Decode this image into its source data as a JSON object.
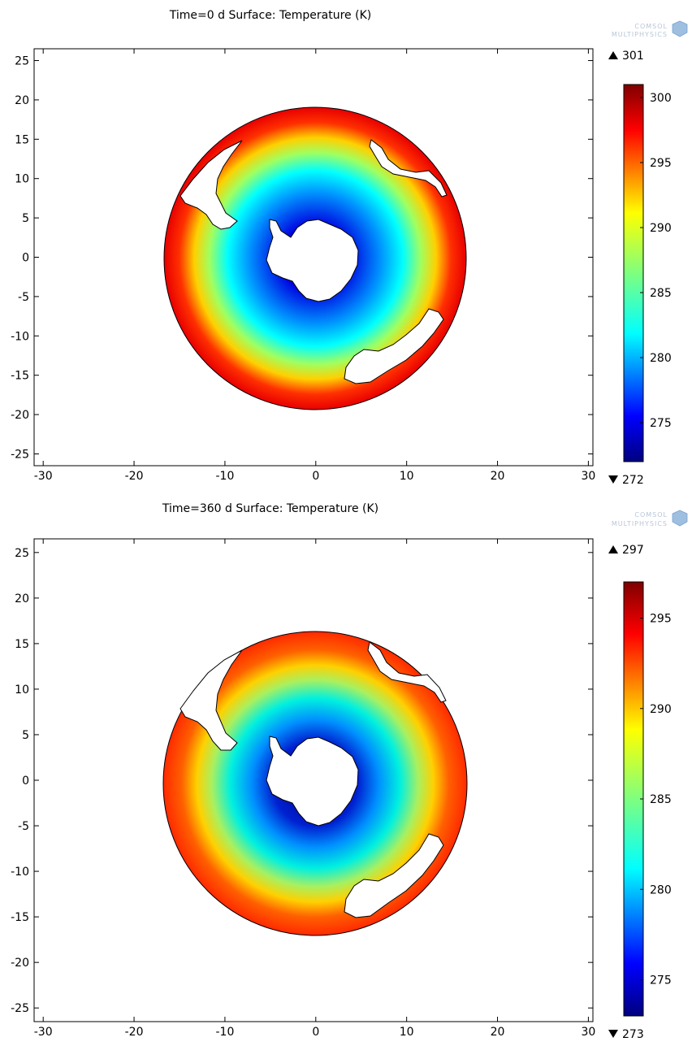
{
  "brand": {
    "line1": "COMSOL",
    "line2": "MULTIPHYSICS"
  },
  "chart_data": [
    {
      "type": "heatmap",
      "title": "Time=0 d Surface: Temperature (K)",
      "xlabel": "",
      "ylabel": "",
      "xlim": [
        -31,
        30.5
      ],
      "ylim": [
        -26.5,
        26.5
      ],
      "xticks": [
        -30,
        -20,
        -10,
        0,
        10,
        20,
        30
      ],
      "yticks": [
        25,
        20,
        15,
        10,
        5,
        0,
        -5,
        -10,
        -15,
        -20,
        -25
      ],
      "grid": false,
      "domain": {
        "shape": "disk",
        "center": [
          0,
          0
        ],
        "radius": 16.8
      },
      "field": {
        "quantity": "Temperature",
        "unit": "K",
        "pattern": "radial, coldest near center, warmest at rim",
        "center_value": 272,
        "rim_value": 301
      },
      "colorbar": {
        "max": 301,
        "min": 272,
        "ticks": [
          300,
          295,
          290,
          285,
          280,
          275
        ],
        "colormap": "rainbow"
      }
    },
    {
      "type": "heatmap",
      "title": "Time=360 d Surface: Temperature (K)",
      "xlabel": "",
      "ylabel": "",
      "xlim": [
        -31,
        30.5
      ],
      "ylim": [
        -26.5,
        26.5
      ],
      "xticks": [
        -30,
        -20,
        -10,
        0,
        10,
        20,
        30
      ],
      "yticks": [
        25,
        20,
        15,
        10,
        5,
        0,
        -5,
        -10,
        -15,
        -20,
        -25
      ],
      "grid": false,
      "domain": {
        "shape": "disk",
        "center": [
          0,
          0
        ],
        "radius": 16.8
      },
      "field": {
        "quantity": "Temperature",
        "unit": "K",
        "pattern": "radial, coldest near center, warmest at rim",
        "center_value": 273,
        "rim_value": 297
      },
      "colorbar": {
        "max": 297,
        "min": 273,
        "ticks": [
          295,
          290,
          285,
          280,
          275
        ],
        "colormap": "rainbow"
      }
    }
  ]
}
